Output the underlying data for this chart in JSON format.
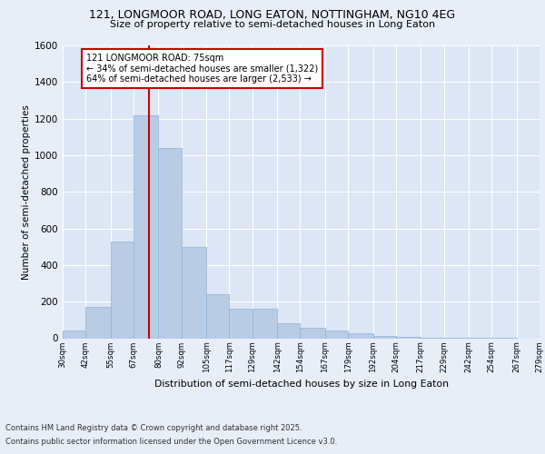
{
  "title_line1": "121, LONGMOOR ROAD, LONG EATON, NOTTINGHAM, NG10 4EG",
  "title_line2": "Size of property relative to semi-detached houses in Long Eaton",
  "xlabel": "Distribution of semi-detached houses by size in Long Eaton",
  "ylabel": "Number of semi-detached properties",
  "bin_labels": [
    "30sqm",
    "42sqm",
    "55sqm",
    "67sqm",
    "80sqm",
    "92sqm",
    "105sqm",
    "117sqm",
    "129sqm",
    "142sqm",
    "154sqm",
    "167sqm",
    "179sqm",
    "192sqm",
    "204sqm",
    "217sqm",
    "229sqm",
    "242sqm",
    "254sqm",
    "267sqm",
    "279sqm"
  ],
  "bin_edges": [
    30,
    42,
    55,
    67,
    80,
    92,
    105,
    117,
    129,
    142,
    154,
    167,
    179,
    192,
    204,
    217,
    229,
    242,
    254,
    267,
    279
  ],
  "bar_heights": [
    40,
    170,
    530,
    1220,
    1040,
    500,
    240,
    160,
    160,
    80,
    55,
    40,
    25,
    10,
    5,
    3,
    2,
    1,
    1,
    0
  ],
  "bar_color": "#b8cce4",
  "bar_edge_color": "#8db4d9",
  "property_value": 75,
  "property_label": "121 LONGMOOR ROAD: 75sqm",
  "pct_smaller": 34,
  "pct_larger": 64,
  "n_smaller": 1322,
  "n_larger": 2533,
  "vline_color": "#cc0000",
  "box_color": "#cc0000",
  "ylim": [
    0,
    1600
  ],
  "background_color": "#e8eef8",
  "plot_background": "#dce6f5",
  "grid_color": "#ffffff",
  "footnote_line1": "Contains HM Land Registry data © Crown copyright and database right 2025.",
  "footnote_line2": "Contains public sector information licensed under the Open Government Licence v3.0."
}
